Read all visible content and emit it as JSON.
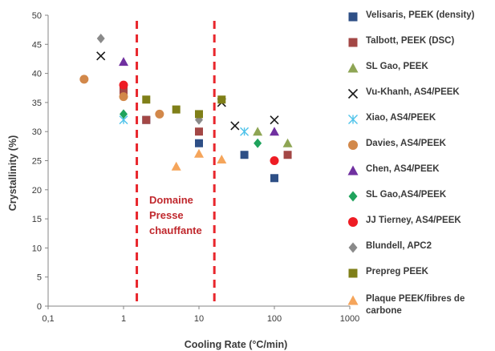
{
  "chart_data": {
    "type": "scatter",
    "xlabel": "Cooling Rate (°C/min)",
    "ylabel": "Crystallinity (%)",
    "xscale": "log",
    "xlim": [
      0.1,
      1000
    ],
    "ylim": [
      0,
      50
    ],
    "x_ticks": [
      "0,1",
      "1",
      "10",
      "100",
      "1000"
    ],
    "y_ticks": [
      "0",
      "5",
      "10",
      "15",
      "20",
      "25",
      "30",
      "35",
      "40",
      "45",
      "50"
    ],
    "grid": false,
    "legend_position": "right",
    "annotation_lines": [
      "Domaine",
      "Presse",
      "chauffante"
    ],
    "vertical_lines_x": [
      1.5,
      16
    ],
    "vertical_line_color": "#e8262c",
    "series": [
      {
        "name": "Velisaris, PEEK (density)",
        "marker": "square",
        "color": "#2e4f86",
        "points": [
          [
            2,
            32
          ],
          [
            10,
            28
          ],
          [
            40,
            26
          ],
          [
            100,
            22
          ]
        ]
      },
      {
        "name": "Talbott, PEEK (DSC)",
        "marker": "square",
        "color": "#a34745",
        "points": [
          [
            1,
            37
          ],
          [
            2,
            32
          ],
          [
            10,
            30
          ],
          [
            150,
            26
          ]
        ]
      },
      {
        "name": "SL Gao, PEEK",
        "marker": "triangle",
        "color": "#8ea554",
        "points": [
          [
            60,
            30
          ],
          [
            150,
            28
          ]
        ]
      },
      {
        "name": "Vu-Khanh,  AS4/PEEK",
        "marker": "x",
        "color": "#1a1a1a",
        "points": [
          [
            0.5,
            43
          ],
          [
            20,
            35
          ],
          [
            30,
            31
          ],
          [
            100,
            32
          ]
        ]
      },
      {
        "name": "Xiao, AS4/PEEK",
        "marker": "asterisk",
        "color": "#4fc3ea",
        "points": [
          [
            1,
            32
          ],
          [
            40,
            30
          ]
        ]
      },
      {
        "name": "Davies, AS4/PEEK",
        "marker": "circle",
        "color": "#d2884a",
        "points": [
          [
            0.3,
            39
          ],
          [
            1,
            36
          ],
          [
            3,
            33
          ]
        ]
      },
      {
        "name": "Chen, AS4/PEEK",
        "marker": "triangle",
        "color": "#7030a0",
        "points": [
          [
            1,
            42
          ],
          [
            100,
            30
          ]
        ]
      },
      {
        "name": "SL Gao,AS4/PEEK",
        "marker": "diamond",
        "color": "#1fa35c",
        "points": [
          [
            1,
            33
          ],
          [
            60,
            28
          ]
        ]
      },
      {
        "name": "JJ Tierney, AS4/PEEK",
        "marker": "circle",
        "color": "#ee1c24",
        "points": [
          [
            1,
            38
          ],
          [
            100,
            25
          ]
        ]
      },
      {
        "name": "Blundell, APC2",
        "marker": "diamond",
        "color": "#8a8a8a",
        "points": [
          [
            0.5,
            46
          ],
          [
            10,
            32
          ]
        ]
      },
      {
        "name": "Prepreg PEEK",
        "marker": "square",
        "color": "#7f7f18",
        "points": [
          [
            2,
            35.5
          ],
          [
            5,
            33.8
          ],
          [
            10,
            33
          ],
          [
            20,
            35.5
          ]
        ]
      },
      {
        "name": "Plaque PEEK/fibres de carbone",
        "marker": "triangle",
        "color": "#f5a55b",
        "points": [
          [
            5,
            24
          ],
          [
            10,
            26.2
          ],
          [
            20,
            25.2
          ]
        ]
      }
    ]
  }
}
